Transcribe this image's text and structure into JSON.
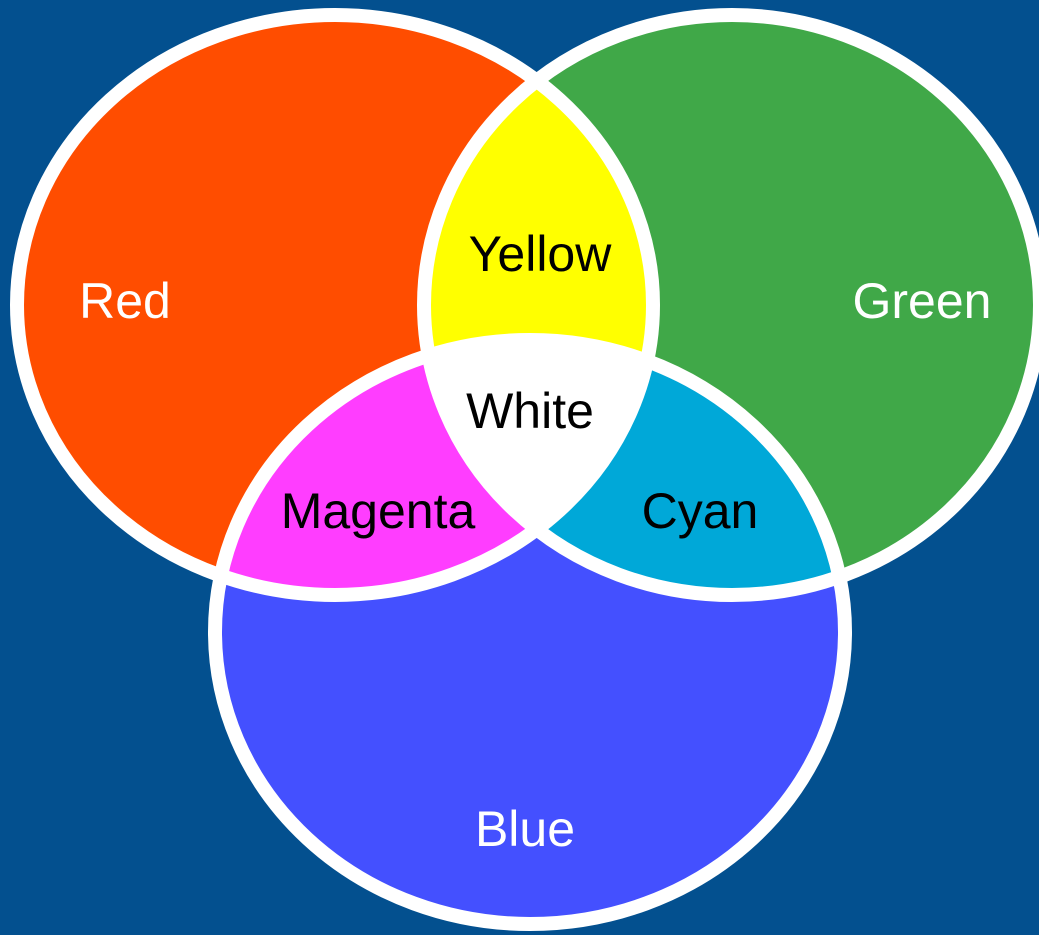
{
  "regions": [
    {
      "label": "Red"
    },
    {
      "label": "Green"
    },
    {
      "label": "Blue"
    },
    {
      "label": "Yellow"
    },
    {
      "label": "Magenta"
    },
    {
      "label": "Cyan"
    },
    {
      "label": "White"
    }
  ]
}
